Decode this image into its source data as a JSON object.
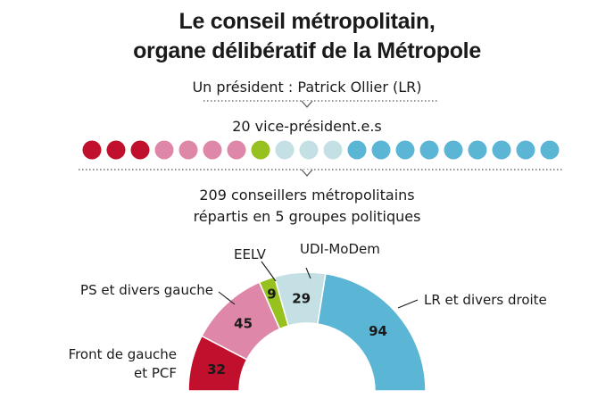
{
  "title": {
    "line1": "Le conseil métropolitain,",
    "line2": "organe délibératif de la Métropole"
  },
  "president_label": "Un président : Patrick Ollier (LR)",
  "vice_presidents": {
    "label": "20 vice-président.e.s",
    "dots": [
      {
        "color": "#c0102e"
      },
      {
        "color": "#c0102e"
      },
      {
        "color": "#c0102e"
      },
      {
        "color": "#de87a8"
      },
      {
        "color": "#de87a8"
      },
      {
        "color": "#de87a8"
      },
      {
        "color": "#de87a8"
      },
      {
        "color": "#96c11f"
      },
      {
        "color": "#c5e0e4"
      },
      {
        "color": "#c5e0e4"
      },
      {
        "color": "#c5e0e4"
      },
      {
        "color": "#5bb5d5"
      },
      {
        "color": "#5bb5d5"
      },
      {
        "color": "#5bb5d5"
      },
      {
        "color": "#5bb5d5"
      },
      {
        "color": "#5bb5d5"
      },
      {
        "color": "#5bb5d5"
      },
      {
        "color": "#5bb5d5"
      },
      {
        "color": "#5bb5d5"
      },
      {
        "color": "#5bb5d5"
      }
    ]
  },
  "councillors": {
    "line1": "209 conseillers métropolitains",
    "line2": "répartis en 5 groupes politiques"
  },
  "chart_data": {
    "type": "pie",
    "subtype": "half-donut",
    "total": 209,
    "slices": [
      {
        "label": [
          "Front de gauche",
          "et PCF"
        ],
        "value": 32,
        "color": "#c0102e"
      },
      {
        "label": [
          "PS et divers gauche"
        ],
        "value": 45,
        "color": "#de87a8"
      },
      {
        "label": [
          "EELV"
        ],
        "value": 9,
        "color": "#96c11f"
      },
      {
        "label": [
          "UDI-MoDem"
        ],
        "value": 29,
        "color": "#c5e0e4"
      },
      {
        "label": [
          "LR et divers droite"
        ],
        "value": 94,
        "color": "#5bb5d5"
      }
    ]
  }
}
